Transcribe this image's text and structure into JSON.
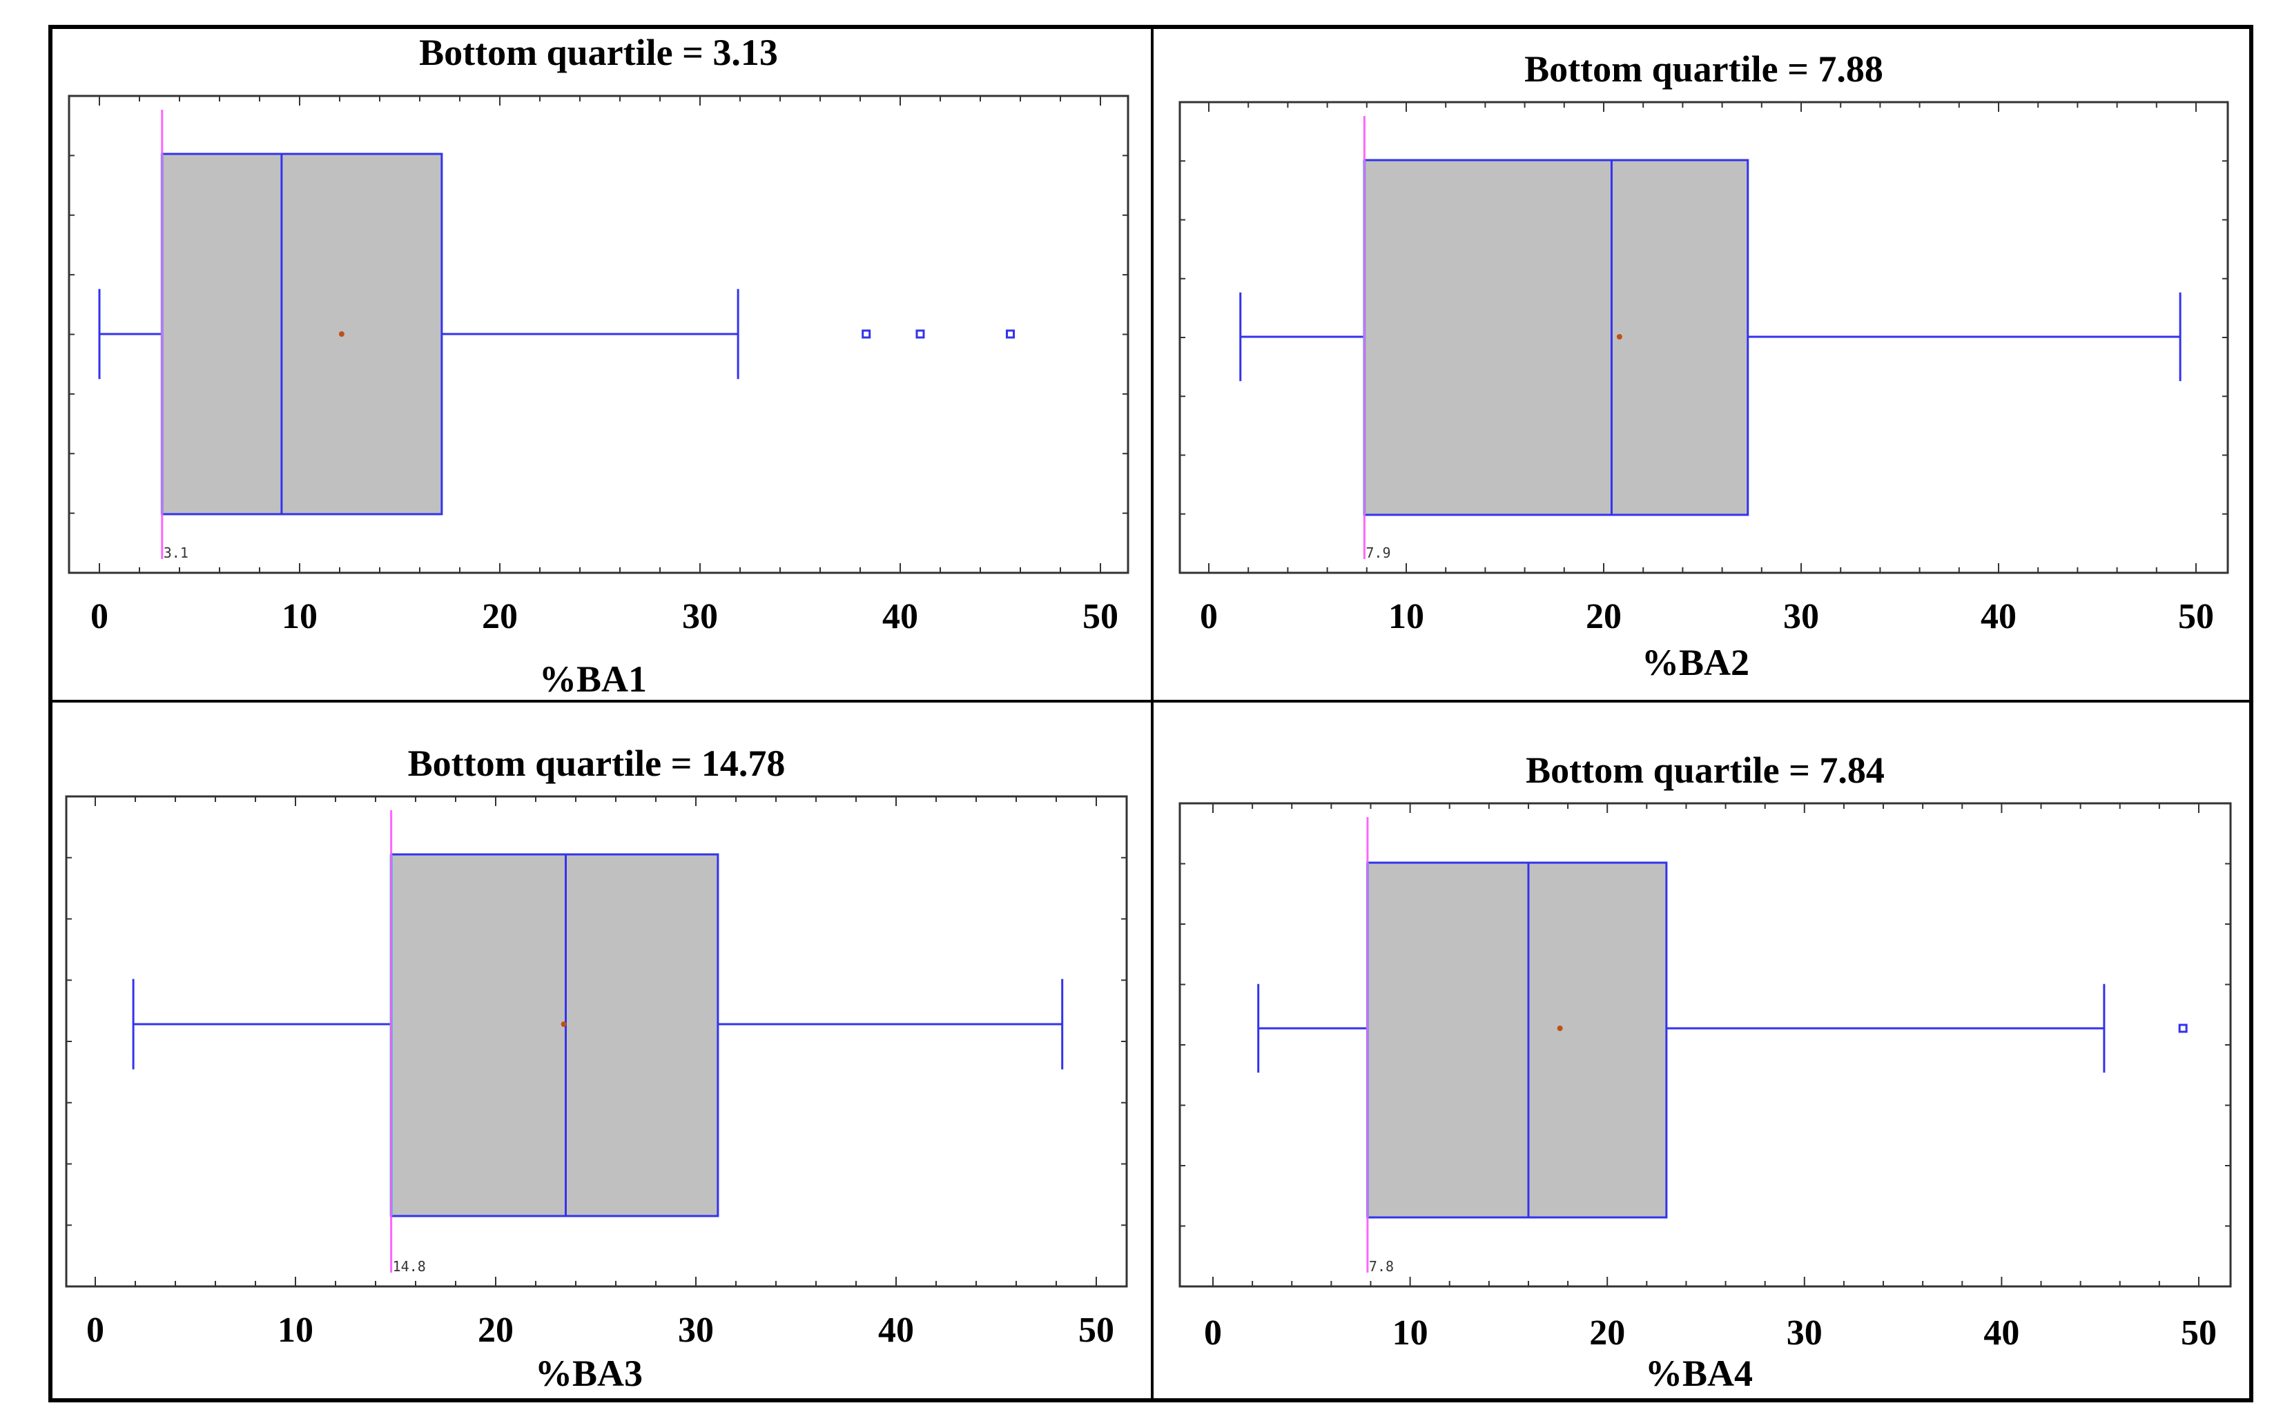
{
  "chart_data": [
    {
      "type": "boxplot",
      "title": "Bottom quartile = 3.13",
      "xlabel": "%BA1",
      "xlim": [
        0,
        50
      ],
      "ticks": [
        "0",
        "10",
        "20",
        "30",
        "40",
        "50"
      ],
      "tick_values": [
        0,
        10,
        20,
        30,
        40,
        50
      ],
      "whisker_low": 0,
      "q1": 3.13,
      "median": 9.1,
      "q3": 17.1,
      "whisker_high": 31.9,
      "mean": 12.1,
      "outliers": [
        38.3,
        41.0,
        45.5
      ],
      "marker_value": 3.13,
      "marker_label": "3.1"
    },
    {
      "type": "boxplot",
      "title": "Bottom quartile = 7.88",
      "xlabel": "%BA2",
      "xlim": [
        0,
        50
      ],
      "ticks": [
        "0",
        "10",
        "20",
        "30",
        "40",
        "50"
      ],
      "tick_values": [
        0,
        10,
        20,
        30,
        40,
        50
      ],
      "whisker_low": 1.6,
      "q1": 7.88,
      "median": 20.4,
      "q3": 27.3,
      "whisker_high": 49.2,
      "mean": 20.8,
      "outliers": [],
      "marker_value": 7.88,
      "marker_label": "7.9"
    },
    {
      "type": "boxplot",
      "title": "Bottom quartile = 14.78",
      "xlabel": "%BA3",
      "xlim": [
        0,
        50
      ],
      "ticks": [
        "0",
        "10",
        "20",
        "30",
        "40",
        "50"
      ],
      "tick_values": [
        0,
        10,
        20,
        30,
        40,
        50
      ],
      "whisker_low": 1.9,
      "q1": 14.78,
      "median": 23.5,
      "q3": 31.1,
      "whisker_high": 48.3,
      "mean": 23.4,
      "outliers": [],
      "marker_value": 14.78,
      "marker_label": "14.8"
    },
    {
      "type": "boxplot",
      "title": "Bottom quartile = 7.84",
      "xlabel": "%BA4",
      "xlim": [
        0,
        50
      ],
      "ticks": [
        "0",
        "10",
        "20",
        "30",
        "40",
        "50"
      ],
      "tick_values": [
        0,
        10,
        20,
        30,
        40,
        50
      ],
      "whisker_low": 2.3,
      "q1": 7.84,
      "median": 16.0,
      "q3": 23.0,
      "whisker_high": 45.2,
      "mean": 17.6,
      "outliers": [
        49.2
      ],
      "marker_value": 7.84,
      "marker_label": "7.8"
    }
  ],
  "colors": {
    "box_fill": "#c0c0c0",
    "box_stroke": "#3333ee",
    "q1_line": "#00cccc",
    "marker_line": "#ff55ff",
    "mean_dot": "#c0501a",
    "frame": "#333333"
  }
}
